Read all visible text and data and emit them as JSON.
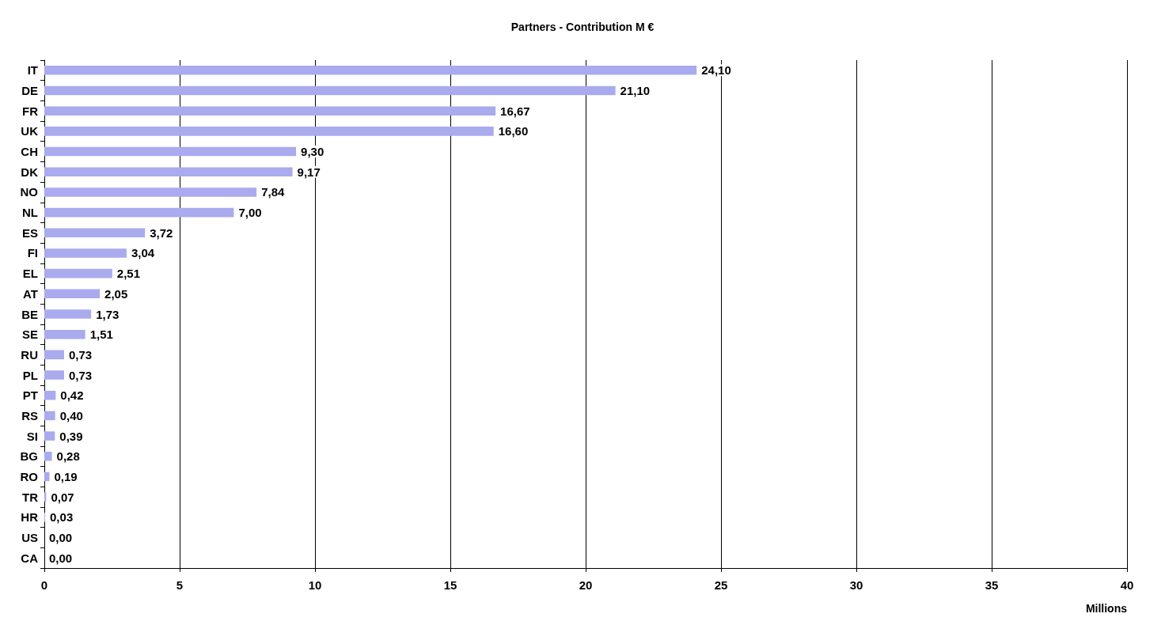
{
  "chart_data": {
    "type": "bar",
    "orientation": "horizontal",
    "title": "Partners - Contribution M €",
    "xlabel": "Millions",
    "categories": [
      "IT",
      "DE",
      "FR",
      "UK",
      "CH",
      "DK",
      "NO",
      "NL",
      "ES",
      "FI",
      "EL",
      "AT",
      "BE",
      "SE",
      "RU",
      "PL",
      "PT",
      "RS",
      "SI",
      "BG",
      "RO",
      "TR",
      "HR",
      "US",
      "CA"
    ],
    "values": [
      24.1,
      21.1,
      16.67,
      16.6,
      9.3,
      9.17,
      7.84,
      7.0,
      3.72,
      3.04,
      2.51,
      2.05,
      1.73,
      1.51,
      0.73,
      0.73,
      0.42,
      0.4,
      0.39,
      0.28,
      0.19,
      0.07,
      0.03,
      0.0,
      0.0
    ],
    "value_labels": [
      "24,10",
      "21,10",
      "16,67",
      "16,60",
      "9,30",
      "9,17",
      "7,84",
      "7,00",
      "3,72",
      "3,04",
      "2,51",
      "2,05",
      "1,73",
      "1,51",
      "0,73",
      "0,73",
      "0,42",
      "0,40",
      "0,39",
      "0,28",
      "0,19",
      "0,07",
      "0,03",
      "0,00",
      "0,00"
    ],
    "color": "#aaaaee",
    "xlim": [
      0,
      40
    ],
    "xticks": [
      0,
      5,
      10,
      15,
      20,
      25,
      30,
      35,
      40
    ],
    "grid": "x"
  }
}
